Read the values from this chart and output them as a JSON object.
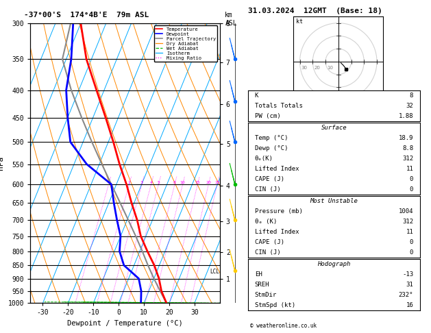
{
  "title_left": "-37°00'S  174°4B'E  79m ASL",
  "title_right": "31.03.2024  12GMT  (Base: 18)",
  "xlabel": "Dewpoint / Temperature (°C)",
  "ylabel_left": "hPa",
  "pressure_levels": [
    300,
    350,
    400,
    450,
    500,
    550,
    600,
    650,
    700,
    750,
    800,
    850,
    900,
    950,
    1000
  ],
  "temp_color": "#ff0000",
  "dewp_color": "#0000ff",
  "parcel_color": "#888888",
  "dry_adiabat_color": "#ff8800",
  "wet_adiabat_color": "#00bb00",
  "isotherm_color": "#00aaff",
  "mixing_color": "#ff00ff",
  "background": "#ffffff",
  "SKEW": 45.0,
  "x_min": -35,
  "x_max": 40,
  "stats_panel": {
    "K": "8",
    "Totals Totals": "32",
    "PW (cm)": "1.88",
    "Surface Temp (C)": "18.9",
    "Surface Dewp (C)": "8.8",
    "Surface theta_e (K)": "312",
    "Surface Lifted Index": "11",
    "Surface CAPE (J)": "0",
    "Surface CIN (J)": "0",
    "MU Pressure (mb)": "1004",
    "MU theta_e (K)": "312",
    "MU Lifted Index": "11",
    "MU CAPE (J)": "0",
    "MU CIN (J)": "0",
    "EH": "-13",
    "SREH": "31",
    "StmDir": "232°",
    "StmSpd (kt)": "16"
  },
  "temp_profile": {
    "pressure": [
      1000,
      950,
      900,
      850,
      800,
      750,
      700,
      650,
      600,
      550,
      500,
      450,
      400,
      350,
      300
    ],
    "temp": [
      18.9,
      15.0,
      12.0,
      8.0,
      3.0,
      -2.0,
      -6.0,
      -11.0,
      -16.0,
      -22.0,
      -28.0,
      -35.0,
      -43.0,
      -52.0,
      -60.0
    ]
  },
  "dewp_profile": {
    "pressure": [
      1000,
      950,
      900,
      850,
      800,
      750,
      700,
      650,
      600,
      550,
      500,
      450,
      400,
      350,
      300
    ],
    "temp": [
      8.8,
      7.0,
      4.0,
      -4.0,
      -8.0,
      -10.0,
      -14.0,
      -18.0,
      -22.0,
      -35.0,
      -45.0,
      -50.0,
      -55.0,
      -58.0,
      -63.0
    ]
  },
  "parcel_profile": {
    "pressure": [
      1000,
      950,
      900,
      850,
      800,
      750,
      700,
      650,
      600,
      550,
      500,
      450,
      400,
      350,
      300
    ],
    "temp": [
      18.9,
      14.5,
      10.0,
      5.5,
      1.0,
      -4.0,
      -9.5,
      -15.5,
      -22.0,
      -29.0,
      -36.5,
      -44.5,
      -53.0,
      -61.5,
      -64.0
    ]
  },
  "lcl_pressure": 875,
  "mixing_ratio_values": [
    1,
    2,
    3,
    4,
    5,
    8,
    10,
    15,
    20,
    25
  ],
  "km_ticks": [
    1,
    2,
    3,
    4,
    5,
    6,
    7,
    8
  ],
  "km_pressures": [
    900,
    800,
    700,
    600,
    500,
    420,
    350,
    295
  ],
  "wind_barb_pressures": [
    295,
    350,
    420,
    500,
    600,
    700,
    870
  ],
  "wind_barb_colors": [
    "#ff00ff",
    "#0066ff",
    "#0066ff",
    "#0066ff",
    "#00bb00",
    "#ffcc00",
    "#ffcc00"
  ],
  "hodo_circles": [
    10,
    20,
    30
  ],
  "hodo_u": [
    2.0,
    4.0,
    5.5,
    6.0
  ],
  "hodo_v": [
    -1.0,
    -3.0,
    -5.0,
    -6.0
  ]
}
